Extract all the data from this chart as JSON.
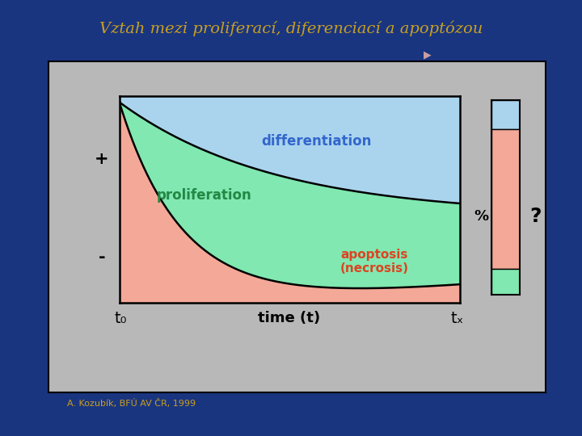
{
  "title": "Vztah mezi proliferací, diferenciací a apoptózou",
  "title_color": "#C8A020",
  "title_fontsize": 14,
  "bg_outer": "#1a3580",
  "bg_gray": "#b8b8b8",
  "differentiation_color": "#aad4ee",
  "proliferation_color": "#80e8b0",
  "apoptosis_color": "#f4a898",
  "label_differentiation": "differentiation",
  "label_differentiation_color": "#3366cc",
  "label_proliferation": "proliferation",
  "label_proliferation_color": "#228844",
  "label_apoptosis": "apoptosis\n(necrosis)",
  "label_apoptosis_color": "#dd4422",
  "plus_label": "+",
  "minus_label": "-",
  "t0_label": "t₀",
  "tx_label": "tₓ",
  "time_label": "time (t)",
  "percent_label": "%",
  "question_label": "?",
  "citation": "A. Kozubík, BFÚ AV ČR, 1999",
  "citation_color": "#C8A020",
  "bar_top_color": "#aad4ee",
  "bar_mid_color": "#f4a898",
  "bar_bot_color": "#80e8b0"
}
